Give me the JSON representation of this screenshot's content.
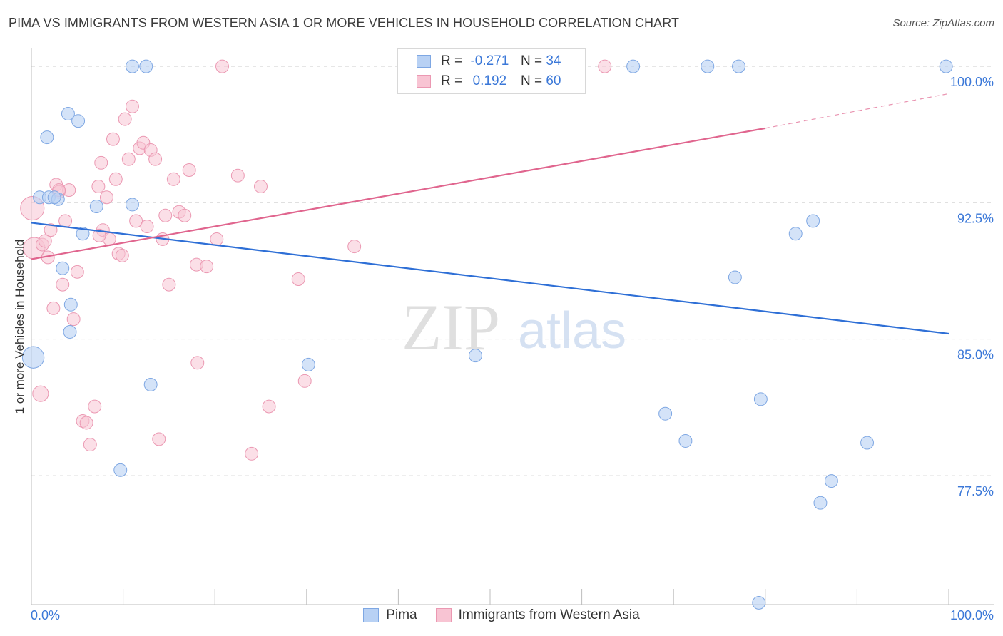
{
  "title": "PIMA VS IMMIGRANTS FROM WESTERN ASIA 1 OR MORE VEHICLES IN HOUSEHOLD CORRELATION CHART",
  "source": "Source: ZipAtlas.com",
  "watermark": {
    "zip": "ZIP",
    "atlas": "atlas"
  },
  "legend": {
    "rows": [
      {
        "r_label": "R =",
        "r_value": "-0.271",
        "n_label": "N =",
        "n_value": "34"
      },
      {
        "r_label": "R =",
        "r_value": "0.192",
        "n_label": "N =",
        "n_value": "60"
      }
    ],
    "bottom": [
      "Pima",
      "Immigrants from Western Asia"
    ]
  },
  "colors": {
    "pima_fill": "#b8d1f4",
    "pima_stroke": "#7ea7e3",
    "pima_line": "#2e6fd6",
    "wa_fill": "#f8c4d3",
    "wa_stroke": "#eb98b2",
    "wa_line": "#e0658e",
    "tick_label": "#3b78d8",
    "grid": "#dcdcdc"
  },
  "chart_data": {
    "type": "scatter",
    "title": "PIMA VS IMMIGRANTS FROM WESTERN ASIA 1 OR MORE VEHICLES IN HOUSEHOLD CORRELATION CHART",
    "xlabel": "",
    "ylabel": "1 or more Vehicles in Household",
    "xlim": [
      0,
      100
    ],
    "ylim": [
      70.4,
      101.3
    ],
    "x_tick_labels": [
      "0.0%",
      "100.0%"
    ],
    "y_ticks": [
      77.5,
      85.0,
      92.5,
      100.0
    ],
    "y_tick_labels": [
      "77.5%",
      "85.0%",
      "92.5%",
      "100.0%"
    ],
    "series": [
      {
        "name": "Pima",
        "r": -0.271,
        "n": 34,
        "trend": {
          "x0": 0,
          "y0": 91.4,
          "x1": 100,
          "y1": 85.3
        },
        "points": [
          [
            0.2,
            84.0,
            22
          ],
          [
            0.9,
            92.8,
            13
          ],
          [
            1.9,
            92.8,
            13
          ],
          [
            2.9,
            92.7,
            13
          ],
          [
            1.7,
            96.1,
            13
          ],
          [
            3.4,
            88.9,
            13
          ],
          [
            4.0,
            97.4,
            13
          ],
          [
            5.1,
            97.0,
            13
          ],
          [
            4.3,
            86.9,
            13
          ],
          [
            4.2,
            85.4,
            13
          ],
          [
            7.1,
            92.3,
            13
          ],
          [
            5.6,
            90.8,
            13
          ],
          [
            9.7,
            77.8,
            13
          ],
          [
            11.0,
            92.4,
            13
          ],
          [
            13.0,
            82.5,
            13
          ],
          [
            11.0,
            100.0,
            13
          ],
          [
            12.5,
            100.0,
            13
          ],
          [
            30.2,
            83.6,
            13
          ],
          [
            48.4,
            84.1,
            13
          ],
          [
            65.6,
            100.0,
            13
          ],
          [
            69.1,
            80.9,
            13
          ],
          [
            71.3,
            79.4,
            13
          ],
          [
            73.7,
            100.0,
            13
          ],
          [
            76.7,
            88.4,
            13
          ],
          [
            77.1,
            100.0,
            13
          ],
          [
            79.5,
            81.7,
            13
          ],
          [
            79.3,
            70.5,
            13
          ],
          [
            83.3,
            90.8,
            13
          ],
          [
            85.2,
            91.5,
            13
          ],
          [
            86.0,
            76.0,
            13
          ],
          [
            87.2,
            77.2,
            13
          ],
          [
            91.1,
            79.3,
            13
          ],
          [
            99.7,
            100.0,
            13
          ],
          [
            2.5,
            92.8,
            13
          ]
        ]
      },
      {
        "name": "Immigrants from Western Asia",
        "r": 0.192,
        "n": 60,
        "trend": {
          "x0": 0,
          "y0": 89.4,
          "x1": 80,
          "y1": 96.6,
          "dash_x1": 100,
          "dash_y1": 98.5
        },
        "points": [
          [
            0.1,
            92.2,
            24
          ],
          [
            0.3,
            90.0,
            22
          ],
          [
            1.0,
            82.0,
            16
          ],
          [
            1.2,
            90.2,
            13
          ],
          [
            1.5,
            90.4,
            13
          ],
          [
            1.8,
            89.5,
            13
          ],
          [
            2.1,
            91.0,
            13
          ],
          [
            2.4,
            86.7,
            13
          ],
          [
            2.7,
            93.5,
            13
          ],
          [
            3.0,
            93.1,
            13
          ],
          [
            3.4,
            88.0,
            13
          ],
          [
            3.7,
            91.5,
            13
          ],
          [
            4.1,
            93.2,
            13
          ],
          [
            4.6,
            86.1,
            13
          ],
          [
            5.0,
            88.7,
            13
          ],
          [
            5.6,
            80.5,
            13
          ],
          [
            6.0,
            80.4,
            13
          ],
          [
            6.4,
            79.2,
            13
          ],
          [
            6.9,
            81.3,
            13
          ],
          [
            7.3,
            93.4,
            13
          ],
          [
            7.6,
            94.7,
            13
          ],
          [
            7.8,
            91.0,
            13
          ],
          [
            8.2,
            92.8,
            13
          ],
          [
            8.5,
            90.5,
            13
          ],
          [
            8.9,
            96.0,
            13
          ],
          [
            9.2,
            93.8,
            13
          ],
          [
            9.5,
            89.7,
            13
          ],
          [
            9.9,
            89.6,
            13
          ],
          [
            10.2,
            97.1,
            13
          ],
          [
            10.6,
            94.9,
            13
          ],
          [
            11.0,
            97.8,
            13
          ],
          [
            11.4,
            91.5,
            13
          ],
          [
            11.8,
            95.5,
            13
          ],
          [
            12.2,
            95.8,
            13
          ],
          [
            12.6,
            91.2,
            13
          ],
          [
            13.0,
            95.4,
            13
          ],
          [
            13.5,
            94.9,
            13
          ],
          [
            13.9,
            79.5,
            13
          ],
          [
            14.3,
            90.5,
            13
          ],
          [
            14.6,
            91.8,
            13
          ],
          [
            15.0,
            88.0,
            13
          ],
          [
            15.5,
            93.8,
            13
          ],
          [
            16.1,
            92.0,
            13
          ],
          [
            16.7,
            91.8,
            13
          ],
          [
            17.2,
            94.3,
            13
          ],
          [
            18.0,
            89.1,
            13
          ],
          [
            18.1,
            83.7,
            13
          ],
          [
            19.1,
            89.0,
            13
          ],
          [
            20.2,
            90.5,
            13
          ],
          [
            20.8,
            100.0,
            13
          ],
          [
            22.5,
            94.0,
            13
          ],
          [
            24.0,
            78.7,
            13
          ],
          [
            25.0,
            93.4,
            13
          ],
          [
            25.9,
            81.3,
            13
          ],
          [
            29.1,
            88.3,
            13
          ],
          [
            29.8,
            82.7,
            13
          ],
          [
            35.2,
            90.1,
            13
          ],
          [
            62.5,
            100.0,
            13
          ],
          [
            7.4,
            90.7,
            13
          ],
          [
            3.0,
            93.2,
            13
          ]
        ]
      }
    ]
  }
}
